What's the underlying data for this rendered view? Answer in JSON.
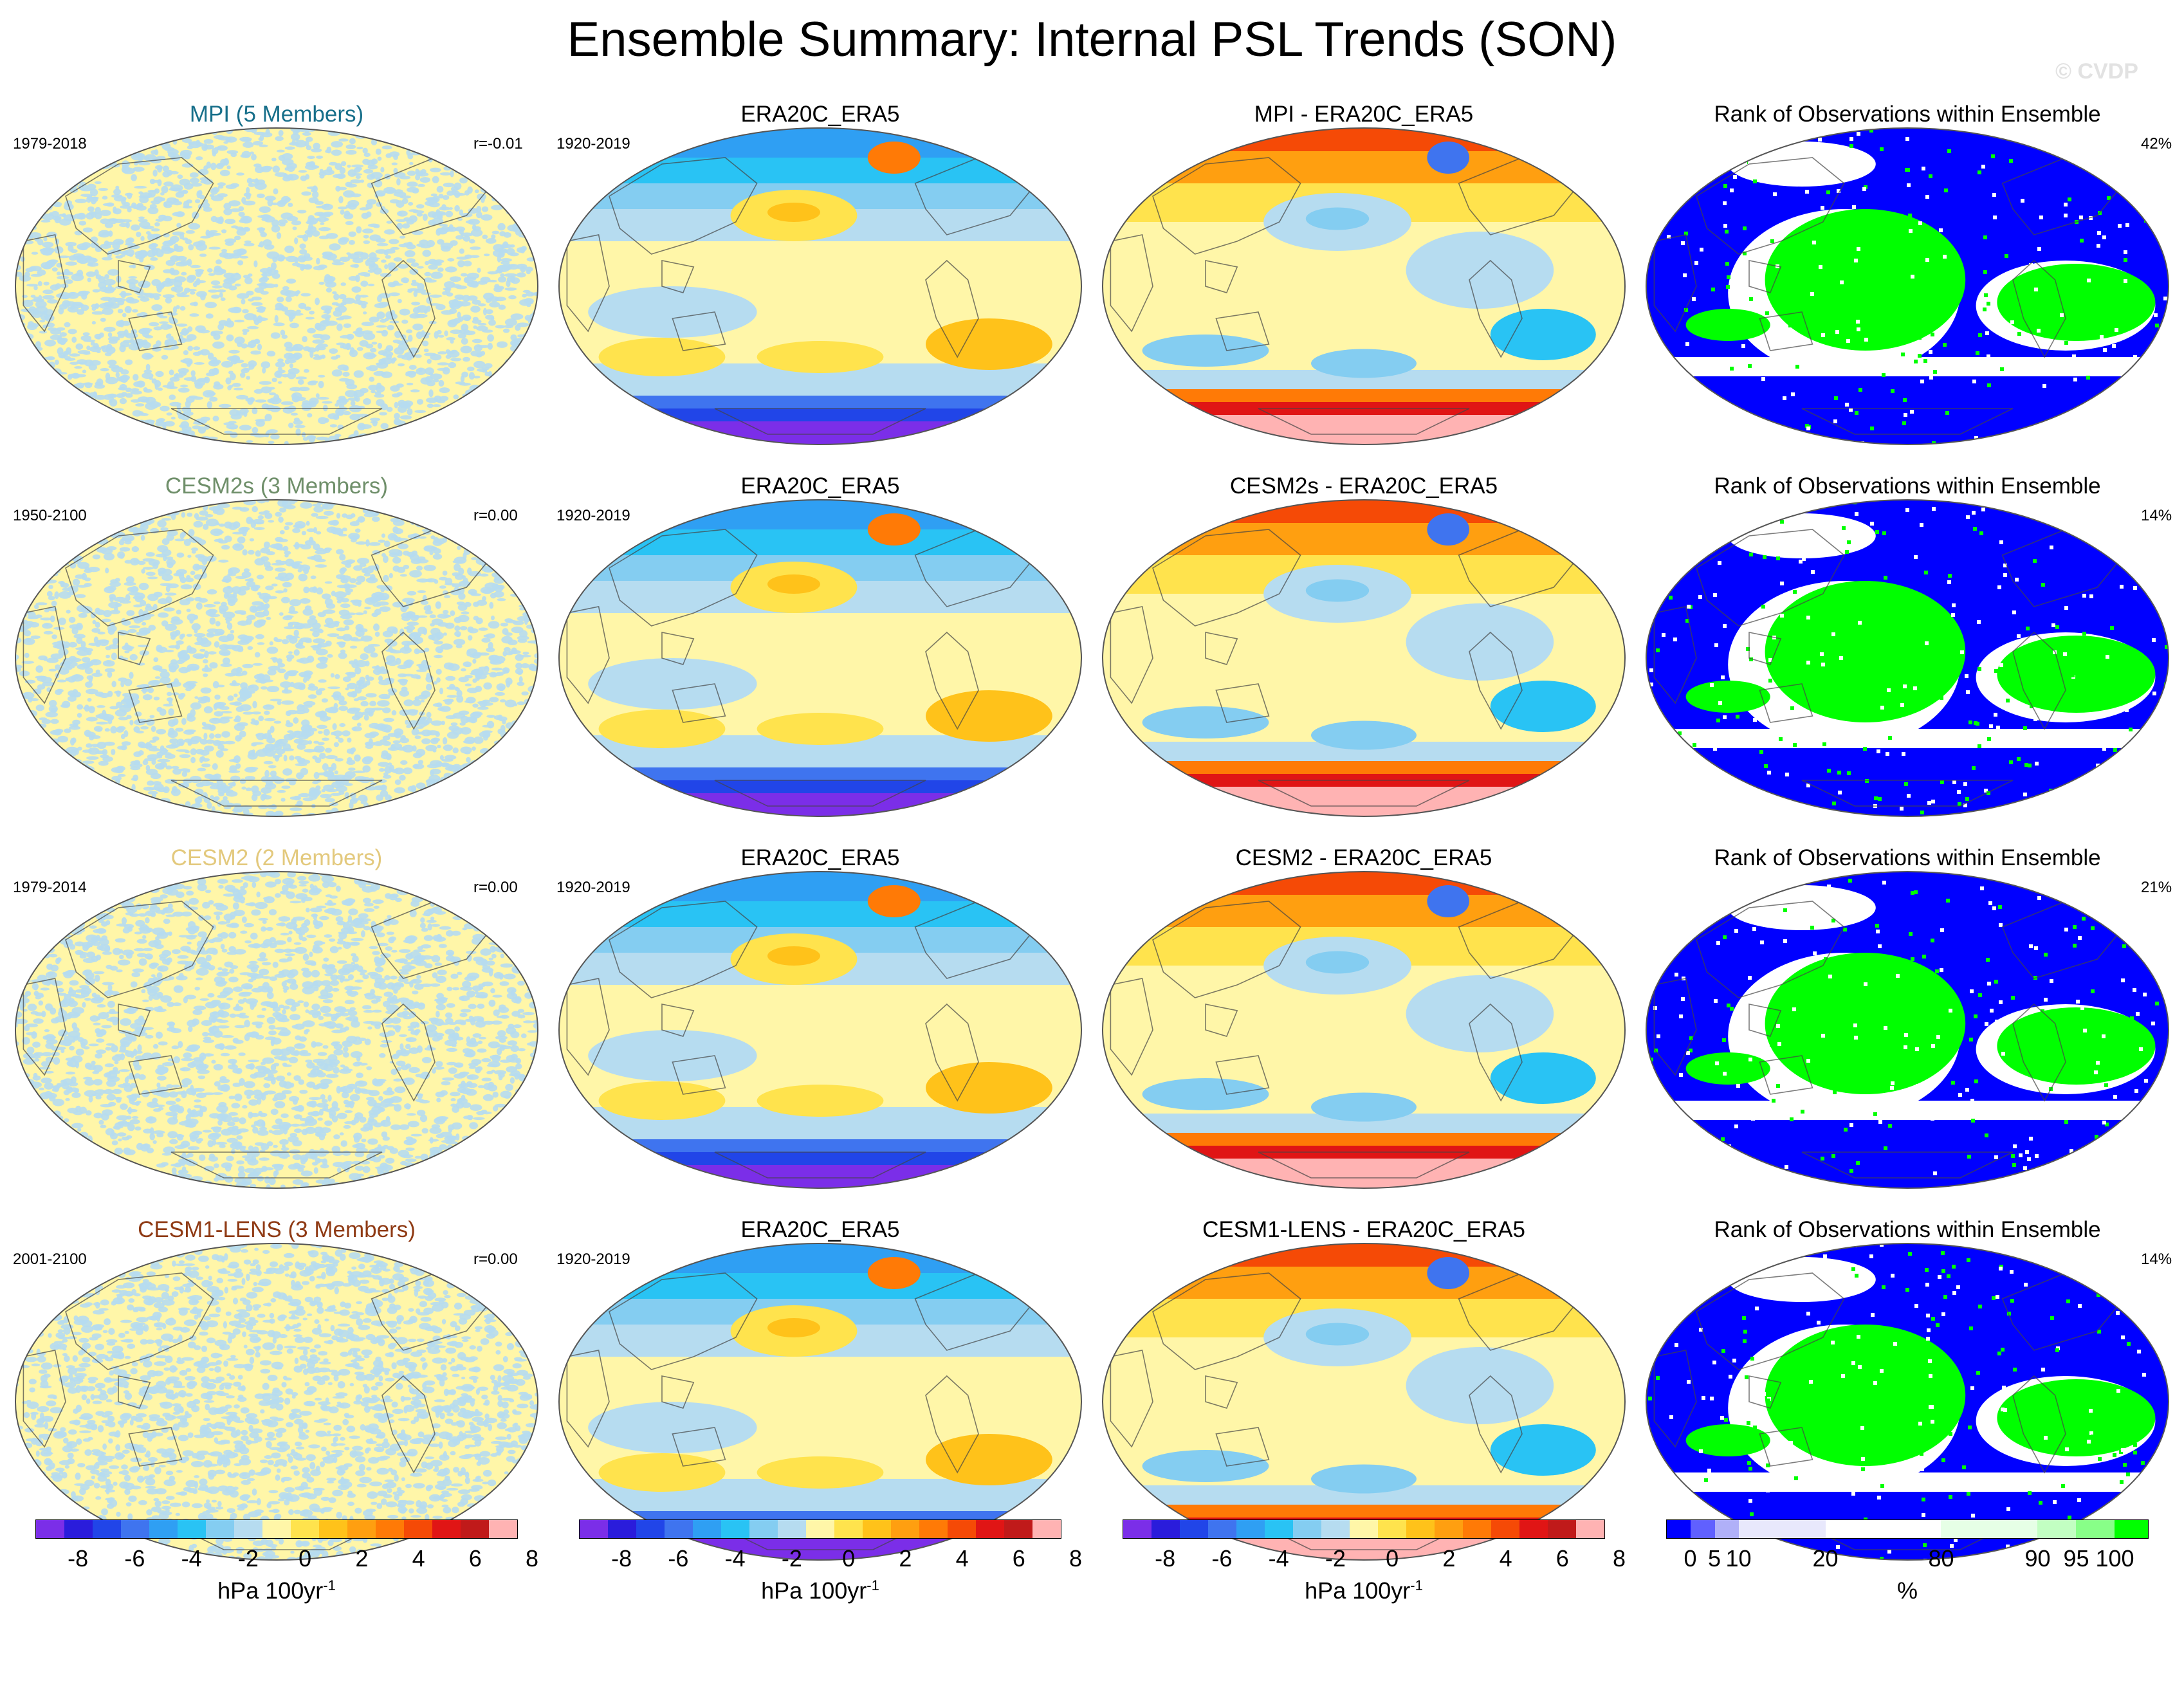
{
  "title": "Ensemble Summary: Internal PSL Trends (SON)",
  "copyright": "© CVDP",
  "rows": [
    {
      "model_title": "MPI (5 Members)",
      "model_color": "#176f8a",
      "model_period": "1979-2018",
      "corr": "r=-0.01",
      "obs_title": "ERA20C_ERA5",
      "obs_period": "1920-2019",
      "diff_title": "MPI - ERA20C_ERA5",
      "rank_title": "Rank of Observations within Ensemble",
      "rank_pct": "42%"
    },
    {
      "model_title": "CESM2s (3 Members)",
      "model_color": "#6f8f6a",
      "model_period": "1950-2100",
      "corr": "r=0.00",
      "obs_title": "ERA20C_ERA5",
      "obs_period": "1920-2019",
      "diff_title": "CESM2s - ERA20C_ERA5",
      "rank_title": "Rank of Observations within Ensemble",
      "rank_pct": "14%"
    },
    {
      "model_title": "CESM2 (2 Members)",
      "model_color": "#e3c97d",
      "model_period": "1979-2014",
      "corr": "r=0.00",
      "obs_title": "ERA20C_ERA5",
      "obs_period": "1920-2019",
      "diff_title": "CESM2 - ERA20C_ERA5",
      "rank_title": "Rank of Observations within Ensemble",
      "rank_pct": "21%"
    },
    {
      "model_title": "CESM1-LENS (3 Members)",
      "model_color": "#8f3a14",
      "model_period": "2001-2100",
      "corr": "r=0.00",
      "obs_title": "ERA20C_ERA5",
      "obs_period": "1920-2019",
      "diff_title": "CESM1-LENS - ERA20C_ERA5",
      "rank_title": "Rank of Observations within Ensemble",
      "rank_pct": "14%"
    }
  ],
  "trend_colorbar": {
    "colors": [
      "#7b2ee8",
      "#2a1cdb",
      "#2145e8",
      "#3f74ef",
      "#2f9ff3",
      "#29c3f4",
      "#84cdf1",
      "#b6dcf0",
      "#fff6a8",
      "#ffe34d",
      "#ffc21a",
      "#ff9f10",
      "#ff7a06",
      "#f54a06",
      "#e01515",
      "#c01a1a",
      "#ffb3b3"
    ],
    "ticks": [
      "-8",
      "-6",
      "-4",
      "-2",
      "0",
      "2",
      "4",
      "6",
      "8"
    ],
    "units": "hPa 100yr",
    "units_exp": "-1"
  },
  "rank_colorbar": {
    "colors": [
      "#0000ff",
      "#6060ff",
      "#b0b0f8",
      "#e8e8fc",
      "#e8e8fc",
      "#ffffff",
      "#ffffff",
      "#e6ffe6",
      "#e6ffe6",
      "#c2ffc2",
      "#88ff88",
      "#00ff00"
    ],
    "ticks": [
      "0",
      "5",
      "10",
      "20",
      "80",
      "90",
      "95",
      "100"
    ],
    "units": "%"
  },
  "map_colors": {
    "noise_a": "#fff6a8",
    "noise_b": "#b6dcf0",
    "rank_blue": "#0000ff",
    "rank_green": "#00ff00",
    "rank_white": "#ffffff"
  }
}
